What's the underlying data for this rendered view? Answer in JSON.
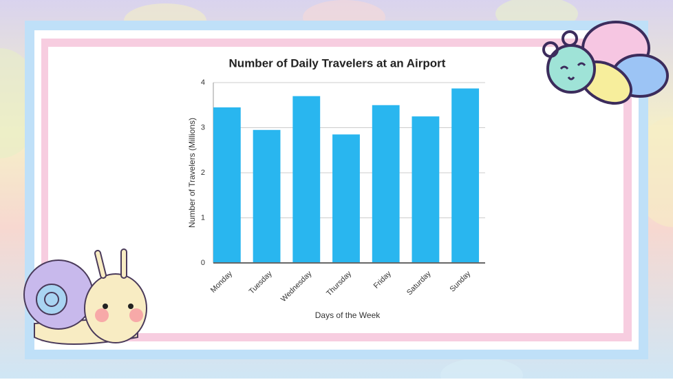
{
  "chart_data": {
    "type": "bar",
    "title": "Number of Daily Travelers at an Airport",
    "x_label": "Days of the Week",
    "y_label": "Number of Travelers (Millions)",
    "categories": [
      "Monday",
      "Tuesday",
      "Wednesday",
      "Thursday",
      "Friday",
      "Saturday",
      "Sunday"
    ],
    "values": [
      3.45,
      2.95,
      3.7,
      2.85,
      3.5,
      3.25,
      3.87
    ],
    "color": "#29b6ef",
    "ylim": [
      0,
      4
    ],
    "yticks": [
      0,
      1,
      2,
      3,
      4
    ],
    "grid": true
  }
}
